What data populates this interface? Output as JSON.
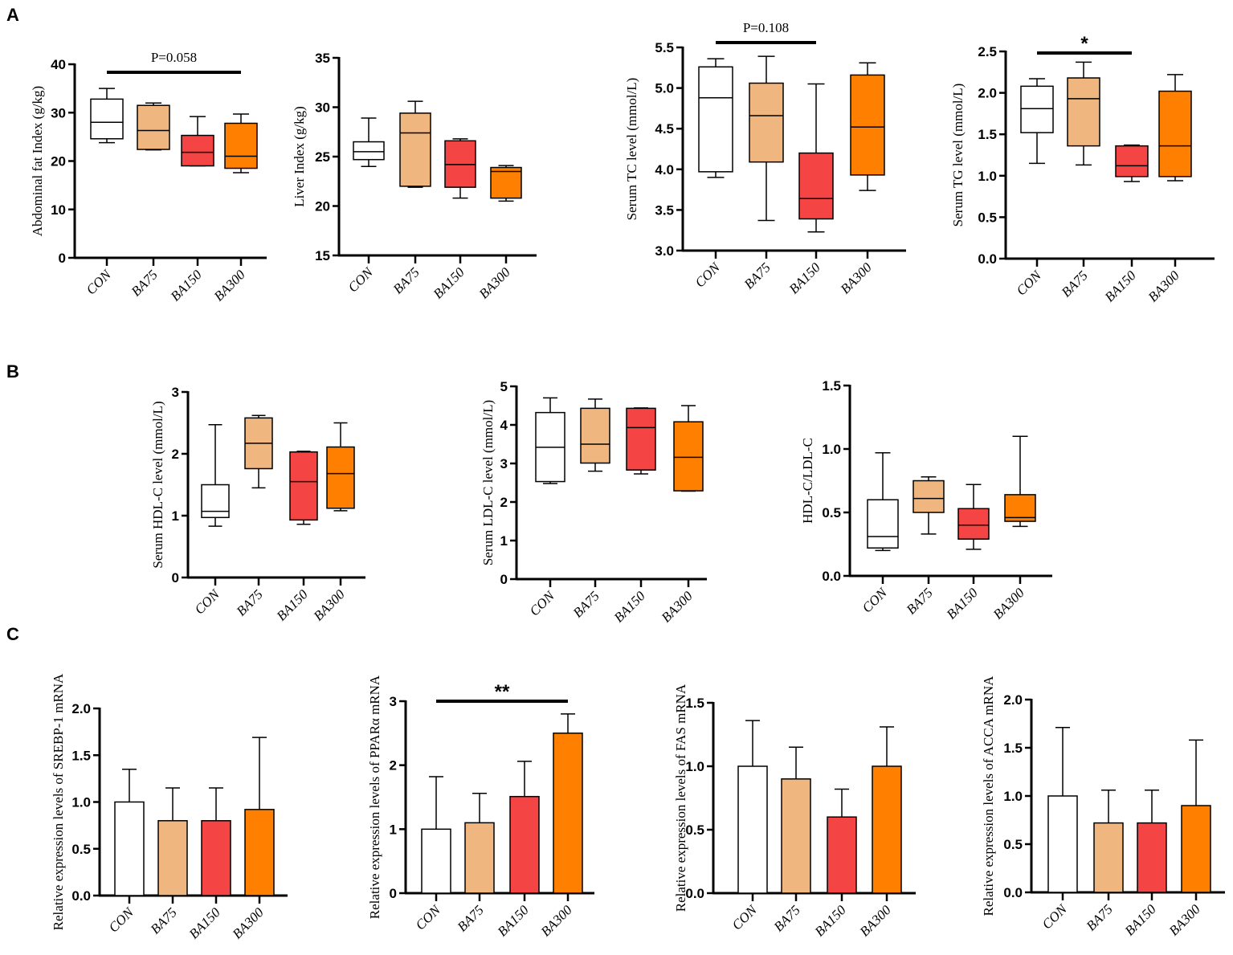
{
  "panel_labels": [
    "A",
    "B",
    "C"
  ],
  "colors": {
    "CON": "#ffffff",
    "BA75": "#f0b67f",
    "BA150": "#f44444",
    "BA300": "#ff8000"
  },
  "chart_data": [
    {
      "id": "A1",
      "panel": "A",
      "type": "box",
      "ylabel": "Abdominal fat Index (g/kg)",
      "categories": [
        "CON",
        "BA75",
        "BA150",
        "BA300"
      ],
      "ylim": [
        0,
        40
      ],
      "yticks": [
        0,
        10,
        20,
        30,
        40
      ],
      "ytick_labels": [
        "0",
        "10",
        "20",
        "30",
        "40"
      ],
      "boxes": [
        {
          "min": 23.8,
          "q1": 24.6,
          "median": 28,
          "q3": 32.8,
          "max": 35
        },
        {
          "min": 22.3,
          "q1": 22.4,
          "median": 26.3,
          "q3": 31.5,
          "max": 32
        },
        {
          "min": 19,
          "q1": 19,
          "median": 21.8,
          "q3": 25.3,
          "max": 29.2
        },
        {
          "min": 17.6,
          "q1": 18.5,
          "median": 21,
          "q3": 27.8,
          "max": 29.7
        }
      ],
      "significance": {
        "from": "CON",
        "to": "BA300",
        "label": "P=0.058"
      }
    },
    {
      "id": "A2",
      "panel": "A",
      "type": "box",
      "ylabel": "Liver Index (g/kg)",
      "categories": [
        "CON",
        "BA75",
        "BA150",
        "BA300"
      ],
      "ylim": [
        15,
        35
      ],
      "yticks": [
        15,
        20,
        25,
        30,
        35
      ],
      "ytick_labels": [
        "15",
        "20",
        "25",
        "30",
        "35"
      ],
      "boxes": [
        {
          "min": 24,
          "q1": 24.7,
          "median": 25.5,
          "q3": 26.5,
          "max": 28.9
        },
        {
          "min": 21.9,
          "q1": 22,
          "median": 27.4,
          "q3": 29.4,
          "max": 30.6
        },
        {
          "min": 20.8,
          "q1": 21.9,
          "median": 24.2,
          "q3": 26.6,
          "max": 26.8
        },
        {
          "min": 20.5,
          "q1": 20.8,
          "median": 23.5,
          "q3": 23.9,
          "max": 24.1
        }
      ]
    },
    {
      "id": "A3",
      "panel": "A",
      "type": "box",
      "ylabel": "Serum TC level (mmol/L)",
      "categories": [
        "CON",
        "BA75",
        "BA150",
        "BA300"
      ],
      "ylim": [
        3,
        5.5
      ],
      "yticks": [
        3,
        3.5,
        4,
        4.5,
        5,
        5.5
      ],
      "ytick_labels": [
        "3.0",
        "3.5",
        "4.0",
        "4.5",
        "5.0",
        "5.5"
      ],
      "boxes": [
        {
          "min": 3.9,
          "q1": 3.97,
          "median": 4.88,
          "q3": 5.26,
          "max": 5.36
        },
        {
          "min": 3.37,
          "q1": 4.09,
          "median": 4.66,
          "q3": 5.06,
          "max": 5.39
        },
        {
          "min": 3.23,
          "q1": 3.39,
          "median": 3.64,
          "q3": 4.2,
          "max": 5.05
        },
        {
          "min": 3.74,
          "q1": 3.93,
          "median": 4.52,
          "q3": 5.16,
          "max": 5.31
        }
      ],
      "significance": {
        "from": "CON",
        "to": "BA150",
        "label": "P=0.108"
      }
    },
    {
      "id": "A4",
      "panel": "A",
      "type": "box",
      "ylabel": "Serum TG level (mmol/L)",
      "categories": [
        "CON",
        "BA75",
        "BA150",
        "BA300"
      ],
      "ylim": [
        0,
        2.5
      ],
      "yticks": [
        0,
        0.5,
        1,
        1.5,
        2,
        2.5
      ],
      "ytick_labels": [
        "0.0",
        "0.5",
        "1.0",
        "1.5",
        "2.0",
        "2.5"
      ],
      "boxes": [
        {
          "min": 1.15,
          "q1": 1.52,
          "median": 1.81,
          "q3": 2.08,
          "max": 2.17
        },
        {
          "min": 1.13,
          "q1": 1.36,
          "median": 1.93,
          "q3": 2.18,
          "max": 2.37
        },
        {
          "min": 0.93,
          "q1": 0.99,
          "median": 1.12,
          "q3": 1.36,
          "max": 1.37
        },
        {
          "min": 0.94,
          "q1": 0.99,
          "median": 1.36,
          "q3": 2.02,
          "max": 2.22
        }
      ],
      "significance": {
        "from": "CON",
        "to": "BA150",
        "label": "*"
      }
    },
    {
      "id": "B1",
      "panel": "B",
      "type": "box",
      "ylabel": "Serum HDL-C level (mmol/L)",
      "categories": [
        "CON",
        "BA75",
        "BA150",
        "BA300"
      ],
      "ylim": [
        0,
        3
      ],
      "yticks": [
        0,
        1,
        2,
        3
      ],
      "ytick_labels": [
        "0",
        "1",
        "2",
        "3"
      ],
      "boxes": [
        {
          "min": 0.83,
          "q1": 0.97,
          "median": 1.07,
          "q3": 1.5,
          "max": 2.47
        },
        {
          "min": 1.45,
          "q1": 1.76,
          "median": 2.17,
          "q3": 2.58,
          "max": 2.62
        },
        {
          "min": 0.86,
          "q1": 0.93,
          "median": 1.55,
          "q3": 2.03,
          "max": 2.04
        },
        {
          "min": 1.08,
          "q1": 1.12,
          "median": 1.68,
          "q3": 2.11,
          "max": 2.5
        }
      ]
    },
    {
      "id": "B2",
      "panel": "B",
      "type": "box",
      "ylabel": "Serum LDL-C level (mmol/L)",
      "categories": [
        "CON",
        "BA75",
        "BA150",
        "BA300"
      ],
      "ylim": [
        0,
        5
      ],
      "yticks": [
        0,
        1,
        2,
        3,
        4,
        5
      ],
      "ytick_labels": [
        "0",
        "1",
        "2",
        "3",
        "4",
        "5"
      ],
      "boxes": [
        {
          "min": 2.48,
          "q1": 2.53,
          "median": 3.42,
          "q3": 4.32,
          "max": 4.7
        },
        {
          "min": 2.8,
          "q1": 3.01,
          "median": 3.5,
          "q3": 4.43,
          "max": 4.67
        },
        {
          "min": 2.73,
          "q1": 2.83,
          "median": 3.93,
          "q3": 4.43,
          "max": 4.44
        },
        {
          "min": 2.28,
          "q1": 2.29,
          "median": 3.16,
          "q3": 4.08,
          "max": 4.5
        }
      ]
    },
    {
      "id": "B3",
      "panel": "B",
      "type": "box",
      "ylabel": "HDL-C/LDL-C",
      "categories": [
        "CON",
        "BA75",
        "BA150",
        "BA300"
      ],
      "ylim": [
        0,
        1.5
      ],
      "yticks": [
        0,
        0.5,
        1,
        1.5
      ],
      "ytick_labels": [
        "0.0",
        "0.5",
        "1.0",
        "1.5"
      ],
      "boxes": [
        {
          "min": 0.2,
          "q1": 0.22,
          "median": 0.31,
          "q3": 0.6,
          "max": 0.97
        },
        {
          "min": 0.33,
          "q1": 0.5,
          "median": 0.61,
          "q3": 0.75,
          "max": 0.78
        },
        {
          "min": 0.21,
          "q1": 0.29,
          "median": 0.4,
          "q3": 0.53,
          "max": 0.72
        },
        {
          "min": 0.39,
          "q1": 0.43,
          "median": 0.46,
          "q3": 0.64,
          "max": 1.1
        }
      ]
    },
    {
      "id": "C1",
      "panel": "C",
      "type": "bar",
      "ylabel": "Relative expression levels of SREBP-1 mRNA",
      "categories": [
        "CON",
        "BA75",
        "BA150",
        "BA300"
      ],
      "ylim": [
        0,
        2
      ],
      "yticks": [
        0,
        0.5,
        1,
        1.5,
        2
      ],
      "ytick_labels": [
        "0.0",
        "0.5",
        "1.0",
        "1.5",
        "2.0"
      ],
      "values": [
        1.0,
        0.8,
        0.8,
        0.92
      ],
      "error_upper": [
        1.35,
        1.15,
        1.15,
        1.69
      ]
    },
    {
      "id": "C2",
      "panel": "C",
      "type": "bar",
      "ylabel": "Relative expression levels of PPARα mRNA",
      "categories": [
        "CON",
        "BA75",
        "BA150",
        "BA300"
      ],
      "ylim": [
        0,
        3
      ],
      "yticks": [
        0,
        1,
        2,
        3
      ],
      "ytick_labels": [
        "0",
        "1",
        "2",
        "3"
      ],
      "values": [
        1.0,
        1.1,
        1.51,
        2.5
      ],
      "error_upper": [
        1.82,
        1.56,
        2.06,
        2.8
      ],
      "significance": {
        "from": "CON",
        "to": "BA300",
        "label": "**"
      }
    },
    {
      "id": "C3",
      "panel": "C",
      "type": "bar",
      "ylabel": "Relative expression levels of FAS mRNA",
      "categories": [
        "CON",
        "BA75",
        "BA150",
        "BA300"
      ],
      "ylim": [
        0,
        1.5
      ],
      "yticks": [
        0,
        0.5,
        1,
        1.5
      ],
      "ytick_labels": [
        "0.0",
        "0.5",
        "1.0",
        "1.5"
      ],
      "values": [
        1.0,
        0.9,
        0.6,
        1.0
      ],
      "error_upper": [
        1.36,
        1.15,
        0.82,
        1.31
      ]
    },
    {
      "id": "C4",
      "panel": "C",
      "type": "bar",
      "ylabel": "Relative expression levels of ACCA mRNA",
      "categories": [
        "CON",
        "BA75",
        "BA150",
        "BA300"
      ],
      "ylim": [
        0,
        2
      ],
      "yticks": [
        0,
        0.5,
        1,
        1.5,
        2
      ],
      "ytick_labels": [
        "0.0",
        "0.5",
        "1.0",
        "1.5",
        "2.0"
      ],
      "values": [
        1.0,
        0.72,
        0.72,
        0.9
      ],
      "error_upper": [
        1.71,
        1.06,
        1.06,
        1.58
      ]
    }
  ]
}
